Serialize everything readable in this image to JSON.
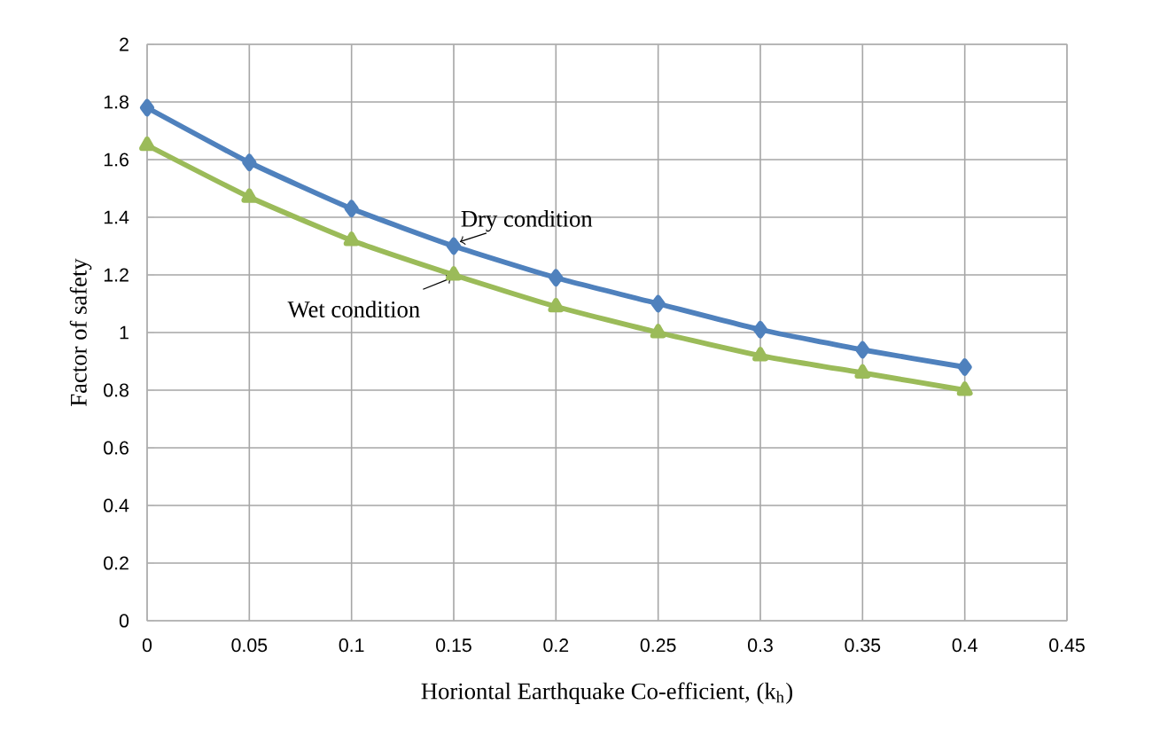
{
  "chart_data": {
    "type": "line",
    "xlabel": "Horiontal Earthquake Co-efficient, (k$_{h}$)",
    "ylabel": "Factor of safety",
    "x": [
      0,
      0.05,
      0.1,
      0.15,
      0.2,
      0.25,
      0.3,
      0.35,
      0.4
    ],
    "series": [
      {
        "name": "Dry condition",
        "color": "#4f81bd",
        "marker": "diamond",
        "values": [
          1.78,
          1.59,
          1.43,
          1.3,
          1.19,
          1.1,
          1.01,
          0.94,
          0.88
        ]
      },
      {
        "name": "Wet condition",
        "color": "#9bbb59",
        "marker": "triangle",
        "values": [
          1.65,
          1.47,
          1.32,
          1.2,
          1.09,
          1.0,
          0.92,
          0.86,
          0.8
        ]
      }
    ],
    "xlim": [
      0,
      0.45
    ],
    "xticks": [
      0,
      0.05,
      0.1,
      0.15,
      0.2,
      0.25,
      0.3,
      0.35,
      0.4,
      0.45
    ],
    "ylim": [
      0,
      2
    ],
    "yticks": [
      0,
      0.2,
      0.4,
      0.6,
      0.8,
      1,
      1.2,
      1.4,
      1.6,
      1.8,
      2
    ],
    "grid": true,
    "legend": false,
    "line_style": "solid"
  }
}
